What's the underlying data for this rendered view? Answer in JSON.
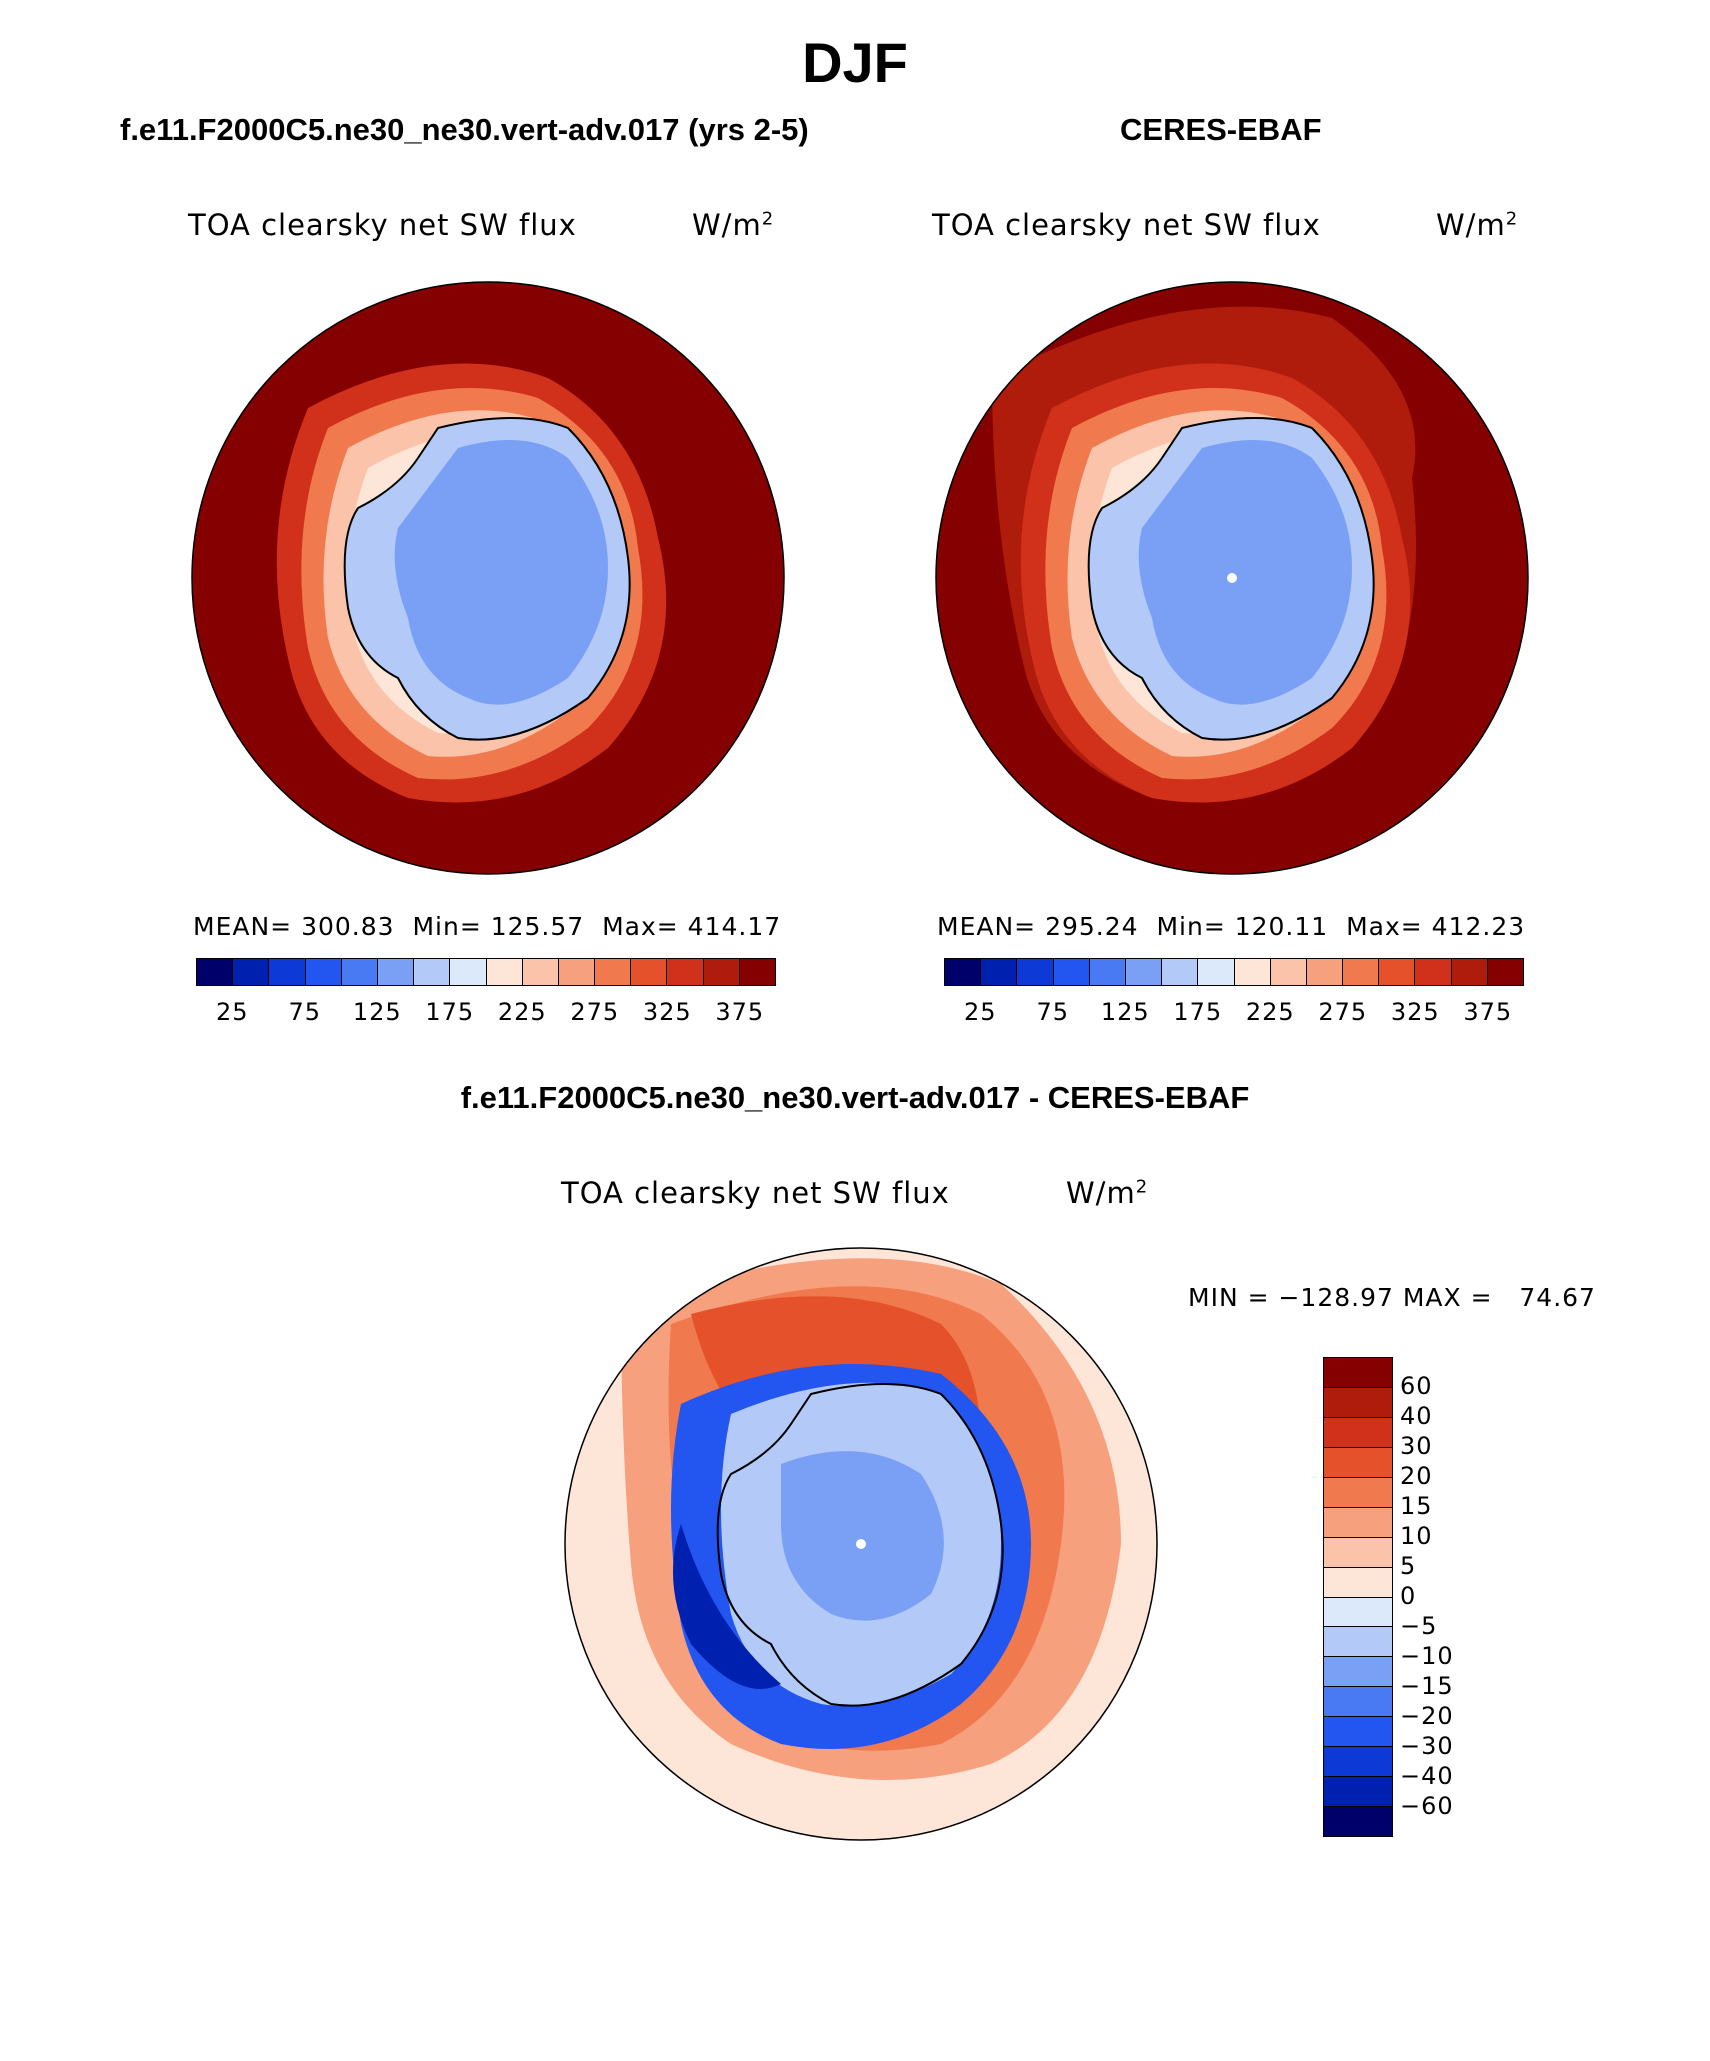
{
  "title": "DJF",
  "panels": {
    "model": {
      "case": "f.e11.F2000C5.ne30_ne30.vert-adv.017 (yrs 2-5)",
      "variable": "TOA clearsky net SW flux",
      "units": "W/m",
      "units_sup": "2",
      "mean_text": "MEAN= 300.83",
      "min_text": "Min= 125.57",
      "max_text": "Max= 414.17"
    },
    "obs": {
      "case": "CERES-EBAF",
      "variable": "TOA clearsky net SW flux",
      "units": "W/m",
      "units_sup": "2",
      "mean_text": "MEAN= 295.24",
      "min_text": "Min= 120.11",
      "max_text": "Max= 412.23"
    },
    "diff": {
      "case": "f.e11.F2000C5.ne30_ne30.vert-adv.017 - CERES-EBAF",
      "variable": "TOA clearsky net SW flux",
      "units": "W/m",
      "units_sup": "2",
      "minmax_text": "MIN = −128.97 MAX =   74.67"
    }
  },
  "colorbar_main": {
    "colors": [
      "#00006a",
      "#0020b0",
      "#0d3ad6",
      "#2356f0",
      "#4a7af3",
      "#7aa0f5",
      "#b3caf8",
      "#dce9fb",
      "#fde6d8",
      "#fbc4aa",
      "#f6a07e",
      "#f07a4e",
      "#e5512a",
      "#d1311a",
      "#b01c0c",
      "#850000"
    ],
    "tick_labels": [
      "25",
      "75",
      "125",
      "175",
      "225",
      "275",
      "325",
      "375"
    ]
  },
  "colorbar_diff": {
    "colors": [
      "#850000",
      "#b01c0c",
      "#d1311a",
      "#e5512a",
      "#f07a4e",
      "#f6a07e",
      "#fbc4aa",
      "#fde6d8",
      "#dce9fb",
      "#b3caf8",
      "#7aa0f5",
      "#4a7af3",
      "#2356f0",
      "#0d3ad6",
      "#0020b0",
      "#00006a"
    ],
    "tick_labels": [
      "60",
      "40",
      "30",
      "20",
      "15",
      "10",
      "5",
      "0",
      "−5",
      "−10",
      "−15",
      "−20",
      "−30",
      "−40",
      "−60"
    ]
  }
}
